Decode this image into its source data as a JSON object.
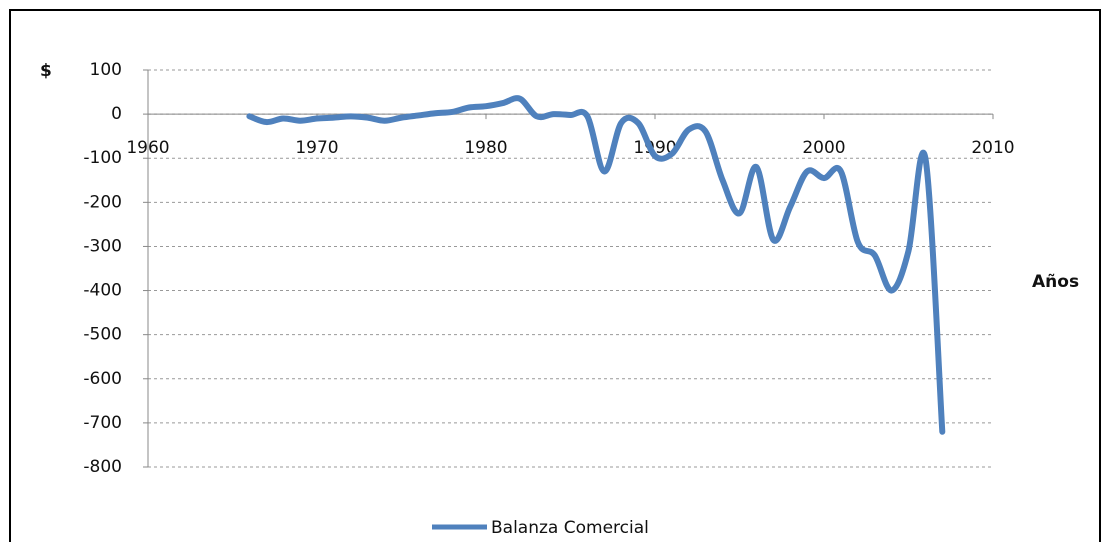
{
  "chart_data": {
    "type": "line",
    "y_label": "$",
    "x_label": "Años",
    "x": [
      1966,
      1967,
      1968,
      1969,
      1970,
      1971,
      1972,
      1973,
      1974,
      1975,
      1976,
      1977,
      1978,
      1979,
      1980,
      1981,
      1982,
      1983,
      1984,
      1985,
      1986,
      1987,
      1988,
      1989,
      1990,
      1991,
      1992,
      1993,
      1994,
      1995,
      1996,
      1997,
      1998,
      1999,
      2000,
      2001,
      2002,
      2003,
      2004,
      2005,
      2006,
      2007
    ],
    "series": [
      {
        "name": "Balanza Comercial",
        "color": "#4f81bd",
        "values": [
          -5,
          -18,
          -10,
          -15,
          -10,
          -8,
          -5,
          -8,
          -15,
          -8,
          -3,
          2,
          5,
          15,
          18,
          25,
          35,
          -5,
          0,
          -2,
          -5,
          -130,
          -20,
          -20,
          -95,
          -90,
          -35,
          -40,
          -150,
          -225,
          -120,
          -285,
          -210,
          -130,
          -145,
          -130,
          -290,
          -320,
          -400,
          -310,
          -100,
          -720
        ]
      }
    ],
    "xlim": [
      1960,
      2010
    ],
    "xticks": [
      1960,
      1970,
      1980,
      1990,
      2000,
      2010
    ],
    "ylim": [
      -800,
      100
    ],
    "yticks": [
      100,
      0,
      -100,
      -200,
      -300,
      -400,
      -500,
      -600,
      -700,
      -800
    ],
    "grid": true,
    "smooth": true,
    "legend": "bottom"
  }
}
